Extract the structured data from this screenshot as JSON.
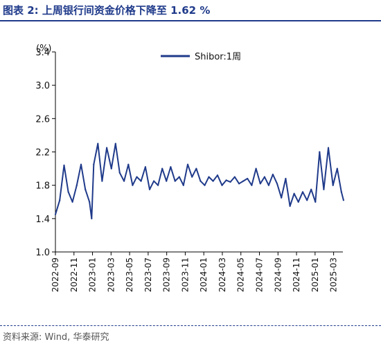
{
  "title": "图表 2:   上周银行间资金价格下降至 1.62 %",
  "source": "资料来源: Wind, 华泰研究",
  "chart_data": {
    "type": "line",
    "title": "",
    "xlabel": "",
    "ylabel": "(%)",
    "ylim": [
      1.0,
      3.4
    ],
    "yticks": [
      1.0,
      1.4,
      1.8,
      2.2,
      2.6,
      3.0,
      3.4
    ],
    "xlim": [
      "2022-09",
      "2025-04"
    ],
    "xticks": [
      "2022-09",
      "2022-11",
      "2023-01",
      "2023-03",
      "2023-05",
      "2023-07",
      "2023-09",
      "2023-11",
      "2024-01",
      "2024-03",
      "2024-05",
      "2024-07",
      "2024-09",
      "2024-11",
      "2025-01",
      "2025-03"
    ],
    "legend": "top-center",
    "grid": false,
    "colors": {
      "line": "#1f3a8a"
    },
    "series": [
      {
        "name": "Shibor:1周",
        "x": [
          "2022-09-01",
          "2022-09-15",
          "2022-09-29",
          "2022-10-13",
          "2022-10-27",
          "2022-11-10",
          "2022-11-24",
          "2022-12-08",
          "2022-12-22",
          "2022-12-29",
          "2023-01-05",
          "2023-01-19",
          "2023-02-02",
          "2023-02-16",
          "2023-03-02",
          "2023-03-16",
          "2023-03-30",
          "2023-04-13",
          "2023-04-27",
          "2023-05-11",
          "2023-05-25",
          "2023-06-08",
          "2023-06-22",
          "2023-07-06",
          "2023-07-20",
          "2023-08-03",
          "2023-08-17",
          "2023-08-31",
          "2023-09-14",
          "2023-09-28",
          "2023-10-12",
          "2023-10-26",
          "2023-11-09",
          "2023-11-23",
          "2023-12-07",
          "2023-12-21",
          "2024-01-04",
          "2024-01-18",
          "2024-02-01",
          "2024-02-15",
          "2024-02-29",
          "2024-03-14",
          "2024-03-28",
          "2024-04-11",
          "2024-04-25",
          "2024-05-09",
          "2024-05-23",
          "2024-06-06",
          "2024-06-20",
          "2024-07-04",
          "2024-07-18",
          "2024-08-01",
          "2024-08-15",
          "2024-08-29",
          "2024-09-12",
          "2024-09-26",
          "2024-10-10",
          "2024-10-24",
          "2024-11-07",
          "2024-11-21",
          "2024-12-05",
          "2024-12-19",
          "2025-01-02",
          "2025-01-16",
          "2025-01-30",
          "2025-02-13",
          "2025-02-27",
          "2025-03-13",
          "2025-03-27",
          "2025-04-03"
        ],
        "values": [
          1.45,
          1.62,
          2.04,
          1.72,
          1.6,
          1.8,
          2.05,
          1.75,
          1.6,
          1.4,
          2.05,
          2.3,
          1.85,
          2.25,
          2.0,
          2.3,
          1.95,
          1.85,
          2.05,
          1.8,
          1.9,
          1.85,
          2.02,
          1.75,
          1.85,
          1.8,
          2.0,
          1.85,
          2.02,
          1.85,
          1.9,
          1.8,
          2.05,
          1.9,
          2.0,
          1.85,
          1.8,
          1.9,
          1.85,
          1.92,
          1.8,
          1.86,
          1.84,
          1.9,
          1.82,
          1.85,
          1.88,
          1.8,
          2.0,
          1.82,
          1.9,
          1.8,
          1.93,
          1.82,
          1.65,
          1.88,
          1.55,
          1.7,
          1.6,
          1.72,
          1.62,
          1.75,
          1.6,
          2.2,
          1.75,
          2.25,
          1.8,
          2.0,
          1.72,
          1.62
        ]
      }
    ]
  }
}
